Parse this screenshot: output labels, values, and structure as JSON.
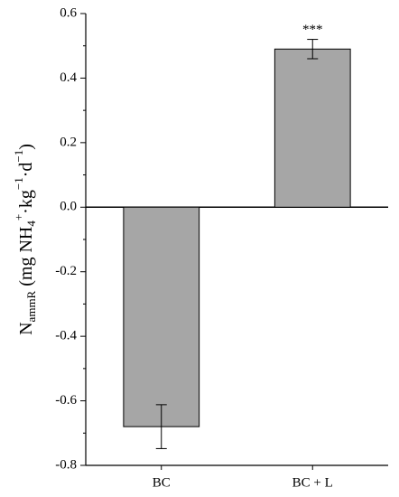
{
  "chart_data": {
    "type": "bar",
    "y_label_parts": [
      "N",
      "ammR",
      " (mg NH",
      "4",
      "+",
      "·kg",
      "−1",
      "·d",
      "−1",
      ")"
    ],
    "categories": [
      "BC",
      "BC + L"
    ],
    "values": [
      -0.68,
      0.49
    ],
    "errors": [
      0.068,
      0.03
    ],
    "annotations": [
      null,
      "***"
    ],
    "color": "#a6a6a6",
    "ylim": [
      -0.8,
      0.6
    ],
    "yticks": [
      -0.8,
      -0.6,
      -0.4,
      -0.2,
      {
        "value": 0,
        "label": "0.0"
      },
      0.2,
      0.4,
      0.6
    ]
  }
}
